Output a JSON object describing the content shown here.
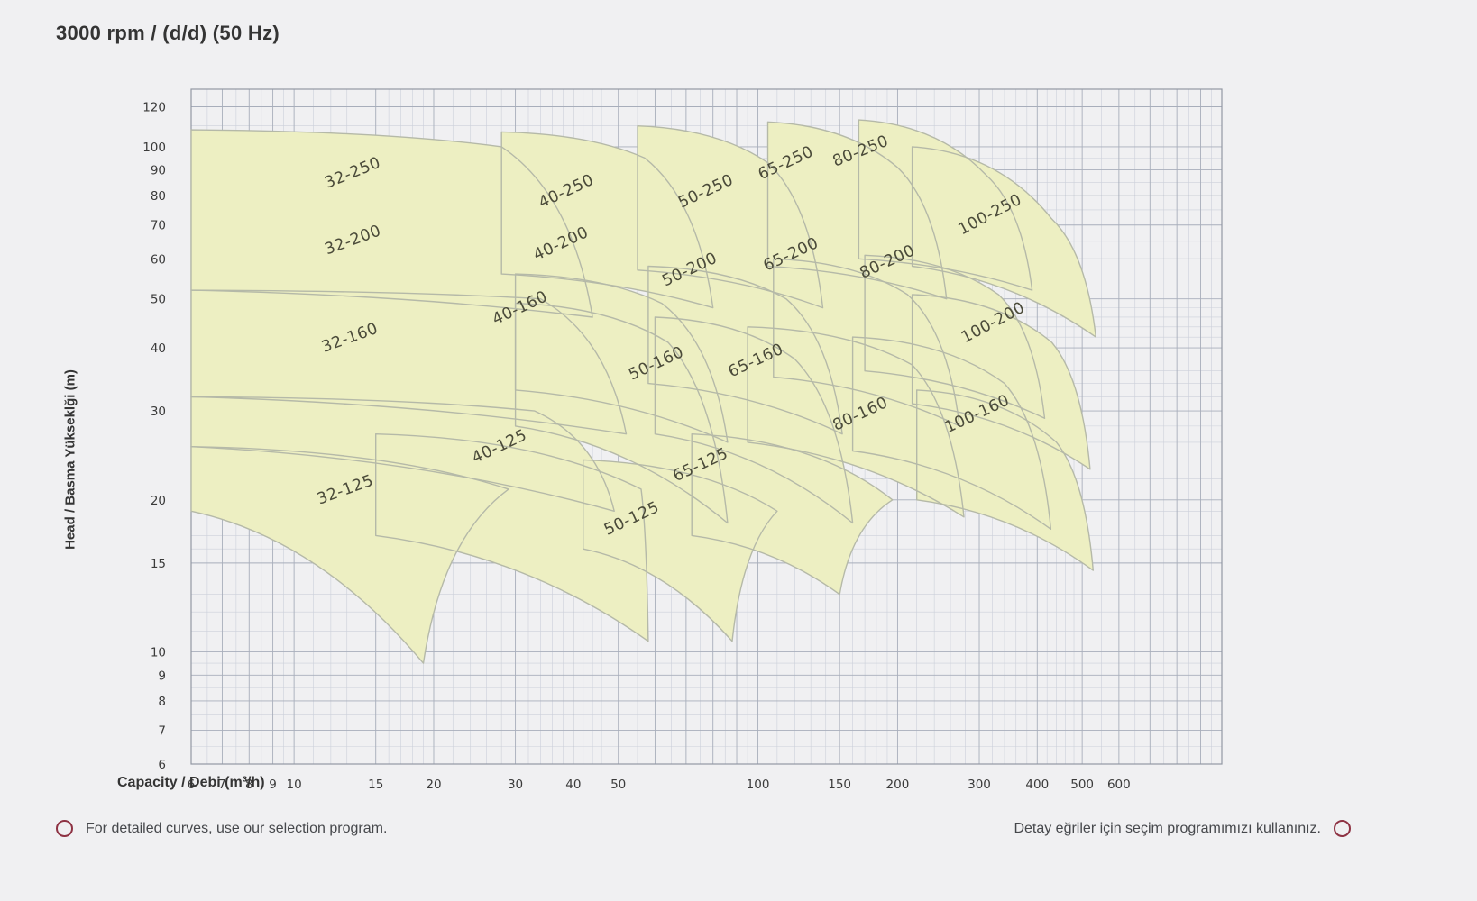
{
  "title": "3000 rpm / (d/d) (50 Hz)",
  "footer": {
    "left_text": "For detailed curves, use our selection program.",
    "right_text": "Detay eğriler için seçim programımızı kullanınız."
  },
  "colors": {
    "background": "#f0f0f2",
    "envelope_fill": "#edefc2",
    "envelope_stroke": "#b5b9a8",
    "grid_minor": "#ccd0da",
    "grid_major": "#a8aebb",
    "frame": "#9298a4",
    "tick_text": "#3b3b3b",
    "envelope_label": "#4b4b3a",
    "legend_circle": "#8e3344"
  },
  "chart_data": {
    "type": "area",
    "title": "3000 rpm / (d/d) (50 Hz)",
    "xlabel": "Capacity / Debi (m³/h)",
    "ylabel": "Head / Basma Yükseklği (m)",
    "x_scale": "log",
    "y_scale": "log",
    "xlim": [
      6,
      1000
    ],
    "ylim": [
      6,
      130
    ],
    "grid": true,
    "x_tick_labels": [
      6,
      7,
      8,
      9,
      10,
      15,
      20,
      30,
      40,
      50,
      100,
      150,
      200,
      300,
      400,
      500,
      600
    ],
    "y_tick_labels": [
      6,
      7,
      8,
      9,
      10,
      15,
      20,
      30,
      40,
      50,
      60,
      70,
      80,
      90,
      100,
      120
    ],
    "x_major": [
      6,
      7,
      8,
      9,
      10,
      15,
      20,
      30,
      40,
      50,
      60,
      70,
      80,
      90,
      100,
      150,
      200,
      300,
      400,
      500,
      600,
      700,
      800,
      900,
      1000
    ],
    "y_major": [
      6,
      7,
      8,
      9,
      10,
      15,
      20,
      30,
      40,
      50,
      60,
      70,
      80,
      90,
      100,
      120
    ],
    "envelopes": [
      {
        "label": "32-250",
        "q1": 6,
        "q2": 28,
        "q3": 44,
        "hta": 108,
        "htb": 100,
        "hbl": 52,
        "htip": 46,
        "lq": 13.5,
        "lh": 87,
        "rot": -22
      },
      {
        "label": "40-250",
        "q1": 28,
        "q2": 57,
        "q3": 80,
        "hta": 107,
        "htb": 95,
        "hbl": 56,
        "htip": 48,
        "lq": 39,
        "lh": 80,
        "rot": -25
      },
      {
        "label": "50-250",
        "q1": 55,
        "q2": 105,
        "q3": 138,
        "hta": 110,
        "htb": 93,
        "hbl": 57,
        "htip": 48,
        "lq": 78,
        "lh": 80,
        "rot": -25
      },
      {
        "label": "65-250",
        "q1": 105,
        "q2": 200,
        "q3": 255,
        "hta": 112,
        "htb": 91,
        "hbl": 58,
        "htip": 50,
        "lq": 116,
        "lh": 91,
        "rot": -25
      },
      {
        "label": "80-250",
        "q1": 165,
        "q2": 310,
        "q3": 390,
        "hta": 113,
        "htb": 88,
        "hbl": 60,
        "htip": 52,
        "lq": 168,
        "lh": 96,
        "rot": -22
      },
      {
        "label": "100-250",
        "q1": 215,
        "q2": 430,
        "q3": 535,
        "hta": 100,
        "htb": 72,
        "hbl": 58,
        "htip": 42,
        "lq": 320,
        "lh": 72,
        "rot": -28
      },
      {
        "label": "32-200",
        "q1": 6,
        "q2": 34,
        "q3": 52,
        "hta": 52,
        "htb": 50,
        "hbl": 32,
        "htip": 27,
        "lq": 13.5,
        "lh": 64,
        "rot": -20
      },
      {
        "label": "40-200",
        "q1": 30,
        "q2": 62,
        "q3": 86,
        "hta": 56,
        "htb": 49,
        "hbl": 33,
        "htip": 26,
        "lq": 38,
        "lh": 63,
        "rot": -25
      },
      {
        "label": "50-200",
        "q1": 58,
        "q2": 115,
        "q3": 152,
        "hta": 58,
        "htb": 50,
        "hbl": 34,
        "htip": 27,
        "lq": 72,
        "lh": 56,
        "rot": -25
      },
      {
        "label": "65-200",
        "q1": 108,
        "q2": 210,
        "q3": 272,
        "hta": 60,
        "htb": 51,
        "hbl": 35,
        "htip": 28,
        "lq": 119,
        "lh": 60,
        "rot": -25
      },
      {
        "label": "80-200",
        "q1": 170,
        "q2": 330,
        "q3": 415,
        "hta": 61,
        "htb": 51,
        "hbl": 36,
        "htip": 29,
        "lq": 192,
        "lh": 58,
        "rot": -25
      },
      {
        "label": "100-200",
        "q1": 215,
        "q2": 430,
        "q3": 520,
        "hta": 51,
        "htb": 41,
        "hbl": 31,
        "htip": 23,
        "lq": 325,
        "lh": 44,
        "rot": -28
      },
      {
        "label": "32-160",
        "q1": 6,
        "q2": 33,
        "q3": 49,
        "hta": 32,
        "htb": 30,
        "hbl": 25.5,
        "htip": 19,
        "lq": 13.3,
        "lh": 41,
        "rot": -20
      },
      {
        "label": "40-160",
        "q1": 30,
        "q2": 64,
        "q3": 86,
        "hta": 49,
        "htb": 41,
        "hbl": 28,
        "htip": 18,
        "lq": 31,
        "lh": 47,
        "rot": -25
      },
      {
        "label": "50-160",
        "q1": 60,
        "q2": 120,
        "q3": 160,
        "hta": 46,
        "htb": 38,
        "hbl": 27,
        "htip": 18,
        "lq": 61,
        "lh": 36.5,
        "rot": -25
      },
      {
        "label": "65-160",
        "q1": 95,
        "q2": 215,
        "q3": 278,
        "hta": 44,
        "htb": 37,
        "hbl": 26,
        "htip": 18.5,
        "lq": 100,
        "lh": 37,
        "rot": -25
      },
      {
        "label": "80-160",
        "q1": 160,
        "q2": 340,
        "q3": 428,
        "hta": 42,
        "htb": 34,
        "hbl": 25,
        "htip": 17.5,
        "lq": 168,
        "lh": 29,
        "rot": -25
      },
      {
        "label": "100-160",
        "q1": 220,
        "q2": 440,
        "q3": 528,
        "hta": 33,
        "htb": 26,
        "hbl": 20,
        "htip": 14.5,
        "lq": 300,
        "lh": 29,
        "rot": -25
      },
      {
        "label": "32-125",
        "q1": 6,
        "q2": 29,
        "q3": 19,
        "hta": 25.5,
        "htb": 21,
        "hbl": 19,
        "htip": 9.5,
        "lq": 13,
        "lh": 20.5,
        "rot": -20
      },
      {
        "label": "40-125",
        "q1": 15,
        "q2": 56,
        "q3": 58,
        "hta": 27,
        "htb": 21,
        "hbl": 17,
        "htip": 10.5,
        "lq": 28,
        "lh": 25,
        "rot": -25
      },
      {
        "label": "50-125",
        "q1": 42,
        "q2": 110,
        "q3": 88,
        "hta": 24,
        "htb": 19,
        "hbl": 16,
        "htip": 10.5,
        "lq": 54,
        "lh": 18,
        "rot": -25
      },
      {
        "label": "65-125",
        "q1": 72,
        "q2": 195,
        "q3": 150,
        "hta": 27,
        "htb": 20,
        "hbl": 17,
        "htip": 13,
        "lq": 76,
        "lh": 23,
        "rot": -25
      }
    ]
  }
}
